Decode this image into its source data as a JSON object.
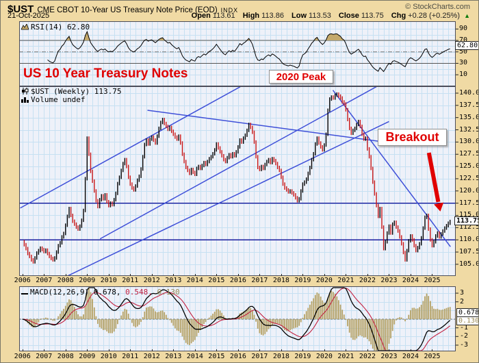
{
  "header": {
    "symbol": "$UST",
    "title": "CME CBOT 10-Year US Treasury Note Price (EOD)",
    "exchange": "INDX",
    "credit": "© StockCharts.com",
    "date": "21-Oct-2025",
    "quote": {
      "open_label": "Open",
      "open": "113.61",
      "high_label": "High",
      "high": "113.86",
      "low_label": "Low",
      "low": "113.53",
      "close_label": "Close",
      "close": "113.75",
      "chg_label": "Chg",
      "chg": "+0.28 (+0.25%)",
      "up_arrow": "▲"
    }
  },
  "annotations": {
    "main_title": "US 10 Year Treasury Notes",
    "peak_label": "2020 Peak",
    "breakout_label": "Breakout"
  },
  "legends": {
    "rsi": "RSI(14) 62.80",
    "price": "$UST (Weekly) 113.75",
    "volume": "Volume undef",
    "macd": "MACD(12,26,9) 0.678,",
    "macd_signal": "0.548,",
    "macd_hist": "0.130"
  },
  "value_boxes": {
    "rsi": "62.80",
    "price": "113.75",
    "macd": "0.678",
    "hist": "0.130"
  },
  "colors": {
    "page_bg": "#F0DAA4",
    "panel_bg": "#EEF1F9",
    "grid": "#C6E0F2",
    "panel_border": "#4B4D5A",
    "candle_up": "#000000",
    "candle_down": "#C81616",
    "trendline_blue": "#3E4FD8",
    "support_navy": "#0A0A96",
    "rsi_line": "#000000",
    "overbought_fill": "#C4A96C",
    "macd_line": "#000000",
    "macd_signal": "#C22040",
    "macd_hist": "#B5A266",
    "annotation_red": "#E00000",
    "chg_green": "#0A7A0A"
  },
  "chart_data": {
    "type": "ohlc-bar",
    "timeframe": "Weekly",
    "x_start": 2006,
    "x_step": 0.083333,
    "years": [
      2006,
      2007,
      2008,
      2009,
      2010,
      2011,
      2012,
      2013,
      2014,
      2015,
      2016,
      2017,
      2018,
      2019,
      2020,
      2021,
      2022,
      2023,
      2024,
      2025
    ],
    "price": {
      "ylim": [
        102.6,
        141.4
      ],
      "ticks": [
        "140.0",
        "137.5",
        "135.0",
        "132.5",
        "130.0",
        "127.5",
        "125.0",
        "122.5",
        "120.0",
        "117.5",
        "115.0",
        "112.5",
        "110.0",
        "107.5",
        "105.0"
      ],
      "last_close": 113.75,
      "values": [
        109.6,
        109.0,
        108.2,
        107.2,
        106.6,
        105.9,
        105.5,
        106.3,
        107.3,
        107.8,
        108.3,
        108.0,
        107.6,
        107.9,
        107.2,
        106.6,
        106.2,
        105.9,
        106.3,
        107.5,
        108.8,
        109.4,
        110.6,
        111.3,
        113.0,
        114.8,
        116.4,
        115.0,
        113.8,
        113.2,
        112.6,
        112.2,
        112.8,
        114.0,
        116.0,
        122.5,
        130.8,
        127.5,
        124.0,
        122.0,
        120.0,
        118.0,
        116.8,
        118.2,
        119.0,
        118.4,
        119.2,
        117.8,
        117.0,
        117.5,
        117.2,
        118.2,
        119.5,
        121.5,
        122.8,
        124.2,
        125.6,
        126.4,
        125.0,
        122.8,
        121.4,
        120.6,
        120.2,
        121.0,
        122.2,
        123.0,
        124.5,
        127.0,
        129.5,
        130.4,
        129.6,
        130.6,
        131.0,
        130.4,
        129.8,
        131.2,
        132.8,
        134.0,
        134.6,
        133.8,
        133.2,
        132.6,
        133.0,
        132.2,
        131.6,
        131.0,
        130.6,
        131.2,
        129.8,
        127.5,
        126.0,
        124.8,
        124.2,
        123.6,
        124.4,
        123.8,
        123.4,
        124.6,
        125.0,
        124.6,
        125.2,
        125.8,
        125.4,
        126.0,
        126.6,
        127.0,
        127.6,
        128.4,
        129.6,
        128.8,
        128.0,
        127.2,
        126.4,
        126.0,
        126.8,
        127.4,
        127.0,
        127.6,
        127.2,
        128.0,
        129.0,
        130.4,
        130.0,
        130.8,
        131.4,
        132.4,
        133.6,
        133.0,
        132.0,
        130.0,
        127.0,
        124.8,
        124.4,
        125.0,
        124.6,
        125.4,
        126.0,
        126.4,
        125.8,
        126.6,
        126.2,
        125.6,
        124.8,
        124.2,
        122.8,
        121.4,
        120.6,
        120.2,
        119.8,
        120.0,
        119.6,
        119.2,
        118.6,
        118.0,
        118.4,
        120.0,
        121.4,
        121.8,
        122.4,
        123.6,
        124.8,
        126.4,
        127.6,
        129.6,
        130.8,
        129.8,
        129.0,
        128.4,
        129.4,
        131.6,
        136.5,
        138.8,
        139.2,
        139.0,
        139.6,
        139.8,
        139.4,
        139.0,
        138.2,
        137.8,
        136.6,
        134.6,
        132.8,
        131.8,
        132.4,
        132.8,
        133.6,
        134.2,
        133.2,
        131.6,
        130.6,
        130.8,
        128.6,
        127.0,
        124.6,
        121.8,
        119.4,
        117.0,
        114.8,
        116.4,
        112.6,
        108.2,
        109.6,
        111.4,
        112.8,
        111.4,
        113.2,
        113.6,
        112.6,
        111.8,
        110.6,
        109.2,
        107.4,
        105.9,
        107.8,
        109.8,
        110.8,
        110.0,
        108.8,
        107.8,
        108.4,
        109.2,
        110.4,
        112.4,
        114.6,
        115.0,
        112.2,
        110.0,
        108.8,
        109.6,
        110.8,
        111.4,
        110.6,
        111.2,
        111.8,
        112.4,
        112.9,
        113.4,
        113.75
      ]
    },
    "rsi": {
      "period": 14,
      "ylim": [
        0,
        100
      ],
      "ticks": [
        90,
        70,
        50,
        30,
        10
      ],
      "overbought": 70,
      "mid": 50,
      "oversold": 30,
      "last": 62.8
    },
    "macd": {
      "params": [
        12,
        26,
        9
      ],
      "ylim": [
        -3.7,
        3.78
      ],
      "ticks": [
        3,
        2,
        -1,
        -2,
        -3
      ],
      "last": [
        0.678,
        0.548,
        0.13
      ]
    },
    "trendlines": [
      {
        "name": "rising-channel-top",
        "from": [
          2005.9,
          116.5
        ],
        "to": [
          2016.1,
          141.3
        ]
      },
      {
        "name": "rising-channel-mid",
        "from": [
          2009.6,
          110.2
        ],
        "to": [
          2022.45,
          141.4
        ]
      },
      {
        "name": "rising-channel-bottom",
        "from": [
          2007.0,
          100.3
        ],
        "to": [
          2023.0,
          134.2
        ]
      },
      {
        "name": "peak-connect-line",
        "from": [
          2011.8,
          136.5
        ],
        "to": [
          2022.8,
          130.0
        ]
      },
      {
        "name": "breakout-trendline",
        "from": [
          2020.4,
          140.6
        ],
        "to": [
          2025.85,
          108.6
        ]
      }
    ],
    "support_resistance": [
      117.5,
      110.0
    ],
    "arrow": {
      "from": [
        2024.85,
        127.8
      ],
      "to": [
        2025.38,
        115.8
      ]
    }
  }
}
